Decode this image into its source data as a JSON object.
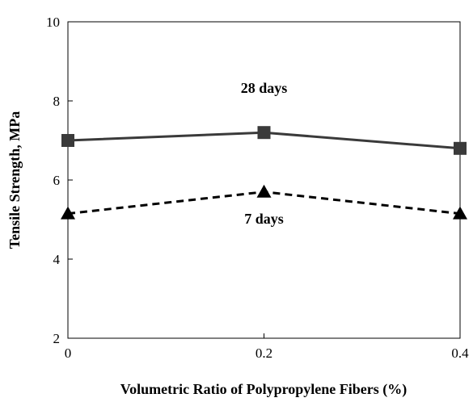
{
  "chart_data": {
    "type": "line",
    "title": "",
    "xlabel": "Volumetric Ratio of Polypropylene Fibers (%)",
    "ylabel": "Tensile Strength, MPa",
    "x": [
      0,
      0.2,
      0.4
    ],
    "xticks": [
      "0",
      "0.2",
      "0.4"
    ],
    "xlim": [
      0,
      0.4
    ],
    "yticks": [
      "2",
      "4",
      "6",
      "8",
      "10"
    ],
    "ylim": [
      2,
      10
    ],
    "grid": false,
    "legend": "none",
    "series": [
      {
        "name": "28 days",
        "values": [
          7.0,
          7.2,
          6.8
        ],
        "marker": "square",
        "line": "solid",
        "color": "#3a3a3a"
      },
      {
        "name": "7 days",
        "values": [
          5.15,
          5.7,
          5.15
        ],
        "marker": "triangle",
        "line": "dashed",
        "color": "#000000"
      }
    ],
    "annotations": [
      {
        "text": "28 days",
        "x": 0.2,
        "y": 8.2
      },
      {
        "text": "7 days",
        "x": 0.2,
        "y": 4.9
      }
    ]
  }
}
